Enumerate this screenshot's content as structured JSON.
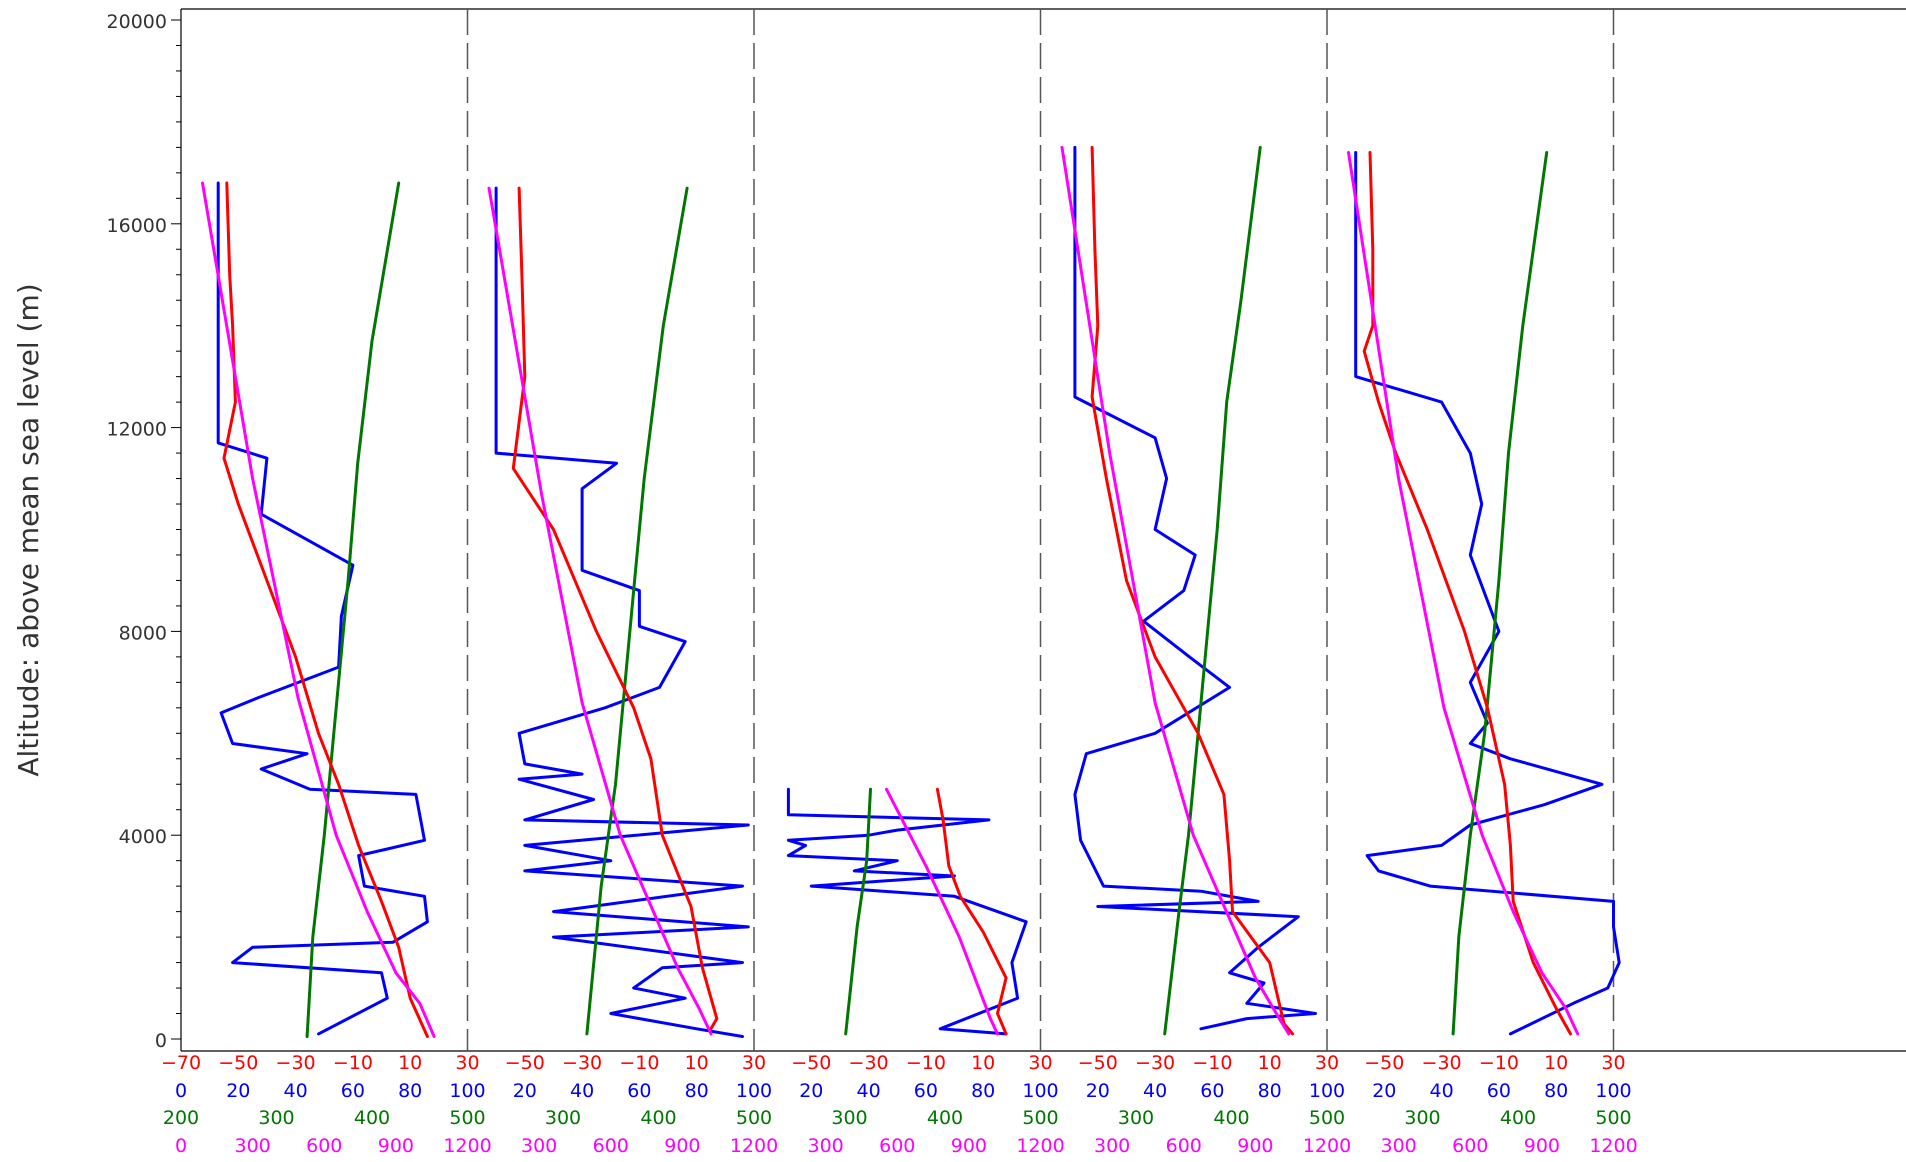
{
  "chart_data": {
    "type": "line",
    "title": "",
    "ylabel": "Altitude: above mean sea level (m)",
    "ylim": [
      0,
      20000
    ],
    "yticks": [
      "0",
      "4000",
      "8000",
      "12000",
      "16000",
      "20000"
    ],
    "panel_count": 5,
    "grid": false,
    "legend": "none",
    "axes": [
      {
        "variable": "temperature",
        "color": "#ff0000",
        "range": [
          -70,
          30
        ],
        "ticks": [
          "−70",
          "−50",
          "−30",
          "−10",
          "10",
          "30"
        ]
      },
      {
        "variable": "humidity",
        "color": "#0000ff",
        "range": [
          0,
          100
        ],
        "ticks": [
          "0",
          "20",
          "40",
          "60",
          "80",
          "100"
        ]
      },
      {
        "variable": "potential_temperature",
        "color": "#007700",
        "range": [
          200,
          500
        ],
        "ticks": [
          "200",
          "300",
          "400",
          "500"
        ]
      },
      {
        "variable": "pressure",
        "color": "#ff00ff",
        "range": [
          0,
          1200
        ],
        "ticks": [
          "0",
          "300",
          "600",
          "900",
          "1200"
        ]
      }
    ],
    "panels": [
      {
        "red": [
          [
            -54,
            16800
          ],
          [
            -53,
            15000
          ],
          [
            -52,
            14000
          ],
          [
            -51,
            12500
          ],
          [
            -55,
            11400
          ],
          [
            -50,
            10500
          ],
          [
            -40,
            9000
          ],
          [
            -30,
            7500
          ],
          [
            -22,
            6000
          ],
          [
            -15,
            5000
          ],
          [
            -8,
            3800
          ],
          [
            0,
            2700
          ],
          [
            6,
            1800
          ],
          [
            10,
            800
          ],
          [
            16,
            50
          ]
        ],
        "blue": [
          [
            13,
            16800
          ],
          [
            13,
            11700
          ],
          [
            30,
            11400
          ],
          [
            28,
            10300
          ],
          [
            60,
            9300
          ],
          [
            56,
            8300
          ],
          [
            55,
            7300
          ],
          [
            27,
            6700
          ],
          [
            14,
            6400
          ],
          [
            18,
            5800
          ],
          [
            44,
            5600
          ],
          [
            28,
            5300
          ],
          [
            45,
            4900
          ],
          [
            82,
            4800
          ],
          [
            85,
            3900
          ],
          [
            62,
            3600
          ],
          [
            64,
            3000
          ],
          [
            85,
            2800
          ],
          [
            86,
            2300
          ],
          [
            74,
            1900
          ],
          [
            25,
            1800
          ],
          [
            18,
            1500
          ],
          [
            70,
            1300
          ],
          [
            72,
            800
          ],
          [
            48,
            100
          ]
        ],
        "green": [
          [
            428,
            16800
          ],
          [
            400,
            13700
          ],
          [
            385,
            11300
          ],
          [
            375,
            9000
          ],
          [
            360,
            6000
          ],
          [
            350,
            4000
          ],
          [
            338,
            2000
          ],
          [
            332,
            50
          ]
        ],
        "magenta": [
          [
            90,
            16800
          ],
          [
            300,
            11000
          ],
          [
            490,
            6700
          ],
          [
            650,
            4000
          ],
          [
            780,
            2500
          ],
          [
            900,
            1300
          ],
          [
            1000,
            700
          ],
          [
            1060,
            50
          ]
        ]
      },
      {
        "red": [
          [
            -52,
            16700
          ],
          [
            -51,
            15000
          ],
          [
            -50,
            13000
          ],
          [
            -54,
            11200
          ],
          [
            -40,
            10000
          ],
          [
            -25,
            8000
          ],
          [
            -12,
            6500
          ],
          [
            -6,
            5500
          ],
          [
            -2,
            4000
          ],
          [
            8,
            2600
          ],
          [
            12,
            1400
          ],
          [
            17,
            400
          ],
          [
            15,
            200
          ]
        ],
        "blue": [
          [
            10,
            16700
          ],
          [
            10,
            11500
          ],
          [
            52,
            11300
          ],
          [
            40,
            10800
          ],
          [
            40,
            9200
          ],
          [
            60,
            8800
          ],
          [
            60,
            8100
          ],
          [
            76,
            7800
          ],
          [
            67,
            6900
          ],
          [
            48,
            6500
          ],
          [
            18,
            6000
          ],
          [
            20,
            5400
          ],
          [
            40,
            5200
          ],
          [
            18,
            5100
          ],
          [
            44,
            4700
          ],
          [
            20,
            4300
          ],
          [
            98,
            4200
          ],
          [
            20,
            3800
          ],
          [
            50,
            3500
          ],
          [
            20,
            3300
          ],
          [
            96,
            3000
          ],
          [
            30,
            2500
          ],
          [
            98,
            2200
          ],
          [
            30,
            2000
          ],
          [
            96,
            1500
          ],
          [
            68,
            1400
          ],
          [
            58,
            1000
          ],
          [
            76,
            800
          ],
          [
            50,
            500
          ],
          [
            80,
            200
          ],
          [
            96,
            50
          ]
        ],
        "green": [
          [
            430,
            16700
          ],
          [
            405,
            14000
          ],
          [
            385,
            11000
          ],
          [
            375,
            9000
          ],
          [
            365,
            7000
          ],
          [
            355,
            5000
          ],
          [
            340,
            3000
          ],
          [
            325,
            100
          ]
        ],
        "magenta": [
          [
            90,
            16700
          ],
          [
            310,
            10700
          ],
          [
            480,
            6600
          ],
          [
            640,
            4000
          ],
          [
            760,
            2700
          ],
          [
            880,
            1400
          ],
          [
            970,
            600
          ],
          [
            1020,
            100
          ]
        ]
      },
      {
        "red": [
          [
            -6,
            4900
          ],
          [
            -4,
            4300
          ],
          [
            -2,
            3400
          ],
          [
            2,
            2800
          ],
          [
            10,
            2100
          ],
          [
            18,
            1200
          ],
          [
            15,
            500
          ],
          [
            18,
            100
          ]
        ],
        "blue": [
          [
            12,
            4900
          ],
          [
            12,
            4400
          ],
          [
            82,
            4300
          ],
          [
            50,
            4100
          ],
          [
            40,
            4000
          ],
          [
            12,
            3900
          ],
          [
            18,
            3800
          ],
          [
            12,
            3600
          ],
          [
            50,
            3500
          ],
          [
            35,
            3300
          ],
          [
            70,
            3200
          ],
          [
            20,
            3000
          ],
          [
            70,
            2800
          ],
          [
            95,
            2300
          ],
          [
            90,
            1500
          ],
          [
            92,
            800
          ],
          [
            65,
            200
          ],
          [
            88,
            100
          ]
        ],
        "green": [
          [
            322,
            4900
          ],
          [
            318,
            3500
          ],
          [
            308,
            2200
          ],
          [
            296,
            100
          ]
        ],
        "magenta": [
          [
            555,
            4900
          ],
          [
            720,
            3400
          ],
          [
            860,
            2000
          ],
          [
            990,
            400
          ],
          [
            1020,
            100
          ]
        ]
      },
      {
        "red": [
          [
            -52,
            17500
          ],
          [
            -51,
            15500
          ],
          [
            -50,
            14000
          ],
          [
            -52,
            12600
          ],
          [
            -47,
            11000
          ],
          [
            -40,
            9000
          ],
          [
            -30,
            7500
          ],
          [
            -15,
            6000
          ],
          [
            -6,
            4800
          ],
          [
            -4,
            3500
          ],
          [
            -3,
            2500
          ],
          [
            10,
            1500
          ],
          [
            15,
            300
          ],
          [
            18,
            100
          ]
        ],
        "blue": [
          [
            12,
            17500
          ],
          [
            12,
            12600
          ],
          [
            40,
            11800
          ],
          [
            44,
            11000
          ],
          [
            40,
            10000
          ],
          [
            54,
            9500
          ],
          [
            50,
            8800
          ],
          [
            36,
            8200
          ],
          [
            52,
            7500
          ],
          [
            66,
            6900
          ],
          [
            40,
            6000
          ],
          [
            16,
            5600
          ],
          [
            12,
            4800
          ],
          [
            14,
            3900
          ],
          [
            22,
            3000
          ],
          [
            56,
            2900
          ],
          [
            76,
            2700
          ],
          [
            20,
            2600
          ],
          [
            90,
            2400
          ],
          [
            76,
            1800
          ],
          [
            66,
            1300
          ],
          [
            78,
            1100
          ],
          [
            72,
            700
          ],
          [
            96,
            500
          ],
          [
            72,
            400
          ],
          [
            56,
            200
          ]
        ],
        "green": [
          [
            430,
            17500
          ],
          [
            410,
            14500
          ],
          [
            395,
            12500
          ],
          [
            385,
            10000
          ],
          [
            375,
            8000
          ],
          [
            365,
            6000
          ],
          [
            355,
            4000
          ],
          [
            345,
            2500
          ],
          [
            330,
            100
          ]
        ],
        "magenta": [
          [
            90,
            17500
          ],
          [
            290,
            11500
          ],
          [
            480,
            6600
          ],
          [
            640,
            4000
          ],
          [
            760,
            2700
          ],
          [
            900,
            1200
          ],
          [
            1000,
            400
          ],
          [
            1040,
            100
          ]
        ]
      },
      {
        "red": [
          [
            -55,
            17400
          ],
          [
            -54,
            15500
          ],
          [
            -54,
            14000
          ],
          [
            -57,
            13500
          ],
          [
            -52,
            12500
          ],
          [
            -46,
            11500
          ],
          [
            -35,
            10000
          ],
          [
            -22,
            8000
          ],
          [
            -14,
            6500
          ],
          [
            -8,
            5000
          ],
          [
            -6,
            3800
          ],
          [
            -5,
            2700
          ],
          [
            2,
            1500
          ],
          [
            10,
            600
          ],
          [
            15,
            100
          ]
        ],
        "blue": [
          [
            10,
            17400
          ],
          [
            10,
            13000
          ],
          [
            40,
            12500
          ],
          [
            50,
            11500
          ],
          [
            54,
            10500
          ],
          [
            50,
            9500
          ],
          [
            60,
            8000
          ],
          [
            50,
            7000
          ],
          [
            56,
            6200
          ],
          [
            50,
            5800
          ],
          [
            64,
            5500
          ],
          [
            96,
            5000
          ],
          [
            76,
            4600
          ],
          [
            50,
            4200
          ],
          [
            40,
            3800
          ],
          [
            14,
            3600
          ],
          [
            18,
            3300
          ],
          [
            36,
            3000
          ],
          [
            100,
            2700
          ],
          [
            100,
            2200
          ],
          [
            102,
            1500
          ],
          [
            98,
            1000
          ],
          [
            86,
            700
          ],
          [
            64,
            100
          ]
        ],
        "green": [
          [
            430,
            17400
          ],
          [
            405,
            14000
          ],
          [
            390,
            11500
          ],
          [
            380,
            9000
          ],
          [
            365,
            6000
          ],
          [
            350,
            4000
          ],
          [
            338,
            2000
          ],
          [
            332,
            100
          ]
        ],
        "magenta": [
          [
            90,
            17400
          ],
          [
            300,
            11000
          ],
          [
            490,
            6500
          ],
          [
            650,
            4000
          ],
          [
            780,
            2500
          ],
          [
            900,
            1300
          ],
          [
            1000,
            600
          ],
          [
            1050,
            100
          ]
        ]
      }
    ]
  }
}
